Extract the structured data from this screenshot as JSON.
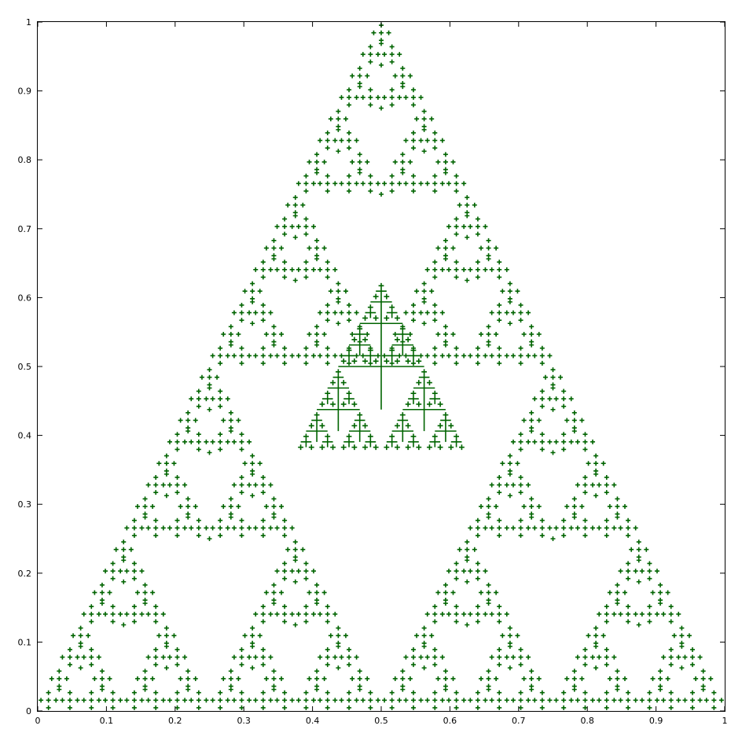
{
  "chart_data": {
    "type": "scatter",
    "title": "",
    "xlabel": "",
    "ylabel": "",
    "xlim": [
      0,
      1
    ],
    "ylim": [
      0,
      1
    ],
    "grid": false,
    "legend": "none",
    "x_ticks": [
      "0",
      "0.1",
      "0.2",
      "0.3",
      "0.4",
      "0.5",
      "0.6",
      "0.7",
      "0.8",
      "0.9",
      "1"
    ],
    "y_ticks": [
      "0",
      "0.1",
      "0.2",
      "0.3",
      "0.4",
      "0.5",
      "0.6",
      "0.7",
      "0.8",
      "0.9",
      "1"
    ],
    "series": [
      {
        "color": "#006400",
        "marker": "plus",
        "fractal": {
          "root_center": [
            0.5,
            0.5
          ],
          "root_half_size": 0.5,
          "levels": 5,
          "children": [
            {
              "offset": [
                0,
                0.5
              ],
              "scale": 0.5
            },
            {
              "offset": [
                -0.5,
                -0.5
              ],
              "scale": 0.5
            },
            {
              "offset": [
                0.5,
                -0.5
              ],
              "scale": 0.5
            }
          ],
          "leaf_arms": [
            [
              0,
              1
            ],
            [
              0,
              -1
            ],
            [
              -1,
              0
            ],
            [
              1,
              0
            ]
          ]
        }
      }
    ]
  }
}
